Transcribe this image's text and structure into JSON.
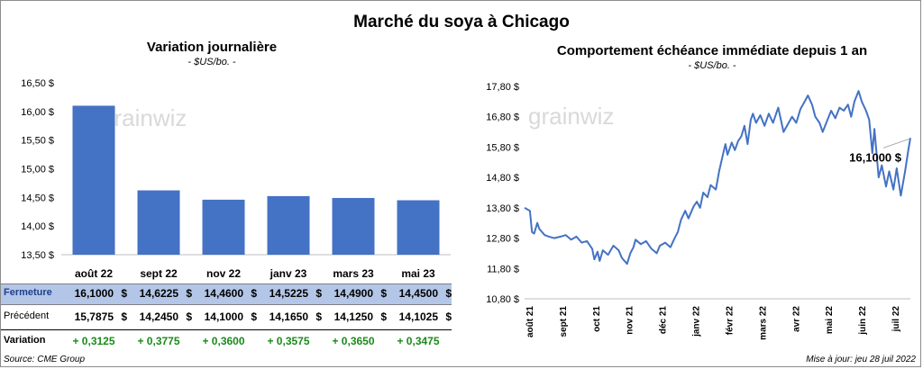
{
  "title": "Marché du soya à Chicago",
  "source": "Source: CME Group",
  "updated": "Mise à jour: jeu 28 juil 2022",
  "watermark": "grainwiz",
  "colors": {
    "bar": "#4472c4",
    "line": "#4472c4",
    "highlight_row": "#b4c6e7",
    "variation": "#1a8a1a"
  },
  "chart_data": [
    {
      "type": "bar",
      "title": "Variation journalière",
      "subtitle": "- $US/bo. -",
      "categories": [
        "août 22",
        "sept 22",
        "nov 22",
        "janv 23",
        "mars 23",
        "mai 23"
      ],
      "values": [
        16.1,
        14.6225,
        14.46,
        14.5225,
        14.49,
        14.45
      ],
      "ylim": [
        13.5,
        16.5
      ],
      "yticks": [
        "13,50 $",
        "14,00 $",
        "14,50 $",
        "15,00 $",
        "15,50 $",
        "16,00 $",
        "16,50 $"
      ],
      "grid": false
    },
    {
      "type": "line",
      "title": "Comportement échéance immédiate depuis 1 an",
      "subtitle": "- $US/bo. -",
      "ylim": [
        10.8,
        17.8
      ],
      "yticks": [
        "10,80 $",
        "11,80 $",
        "12,80 $",
        "13,80 $",
        "14,80 $",
        "15,80 $",
        "16,80 $",
        "17,80 $"
      ],
      "x_labels": [
        "août 21",
        "sept 21",
        "oct 21",
        "nov 21",
        "déc 21",
        "janv 22",
        "févr 22",
        "mars 22",
        "avr 22",
        "mai 22",
        "juin 22",
        "juil 22"
      ],
      "x_range": [
        "2021-07-28",
        "2022-07-28"
      ],
      "callout": "16,1000 $",
      "points": [
        [
          "2021-07-28",
          13.8
        ],
        [
          "2021-08-02",
          13.7
        ],
        [
          "2021-08-04",
          13.0
        ],
        [
          "2021-08-06",
          12.95
        ],
        [
          "2021-08-09",
          13.3
        ],
        [
          "2021-08-11",
          13.1
        ],
        [
          "2021-08-16",
          12.9
        ],
        [
          "2021-08-20",
          12.85
        ],
        [
          "2021-08-25",
          12.8
        ],
        [
          "2021-08-31",
          12.85
        ],
        [
          "2021-09-05",
          12.9
        ],
        [
          "2021-09-10",
          12.75
        ],
        [
          "2021-09-15",
          12.85
        ],
        [
          "2021-09-20",
          12.65
        ],
        [
          "2021-09-25",
          12.7
        ],
        [
          "2021-09-30",
          12.45
        ],
        [
          "2021-10-02",
          12.1
        ],
        [
          "2021-10-05",
          12.35
        ],
        [
          "2021-10-07",
          12.05
        ],
        [
          "2021-10-10",
          12.4
        ],
        [
          "2021-10-15",
          12.25
        ],
        [
          "2021-10-20",
          12.55
        ],
        [
          "2021-10-25",
          12.4
        ],
        [
          "2021-10-28",
          12.15
        ],
        [
          "2021-11-02",
          11.95
        ],
        [
          "2021-11-05",
          12.3
        ],
        [
          "2021-11-08",
          12.5
        ],
        [
          "2021-11-10",
          12.75
        ],
        [
          "2021-11-15",
          12.6
        ],
        [
          "2021-11-20",
          12.7
        ],
        [
          "2021-11-25",
          12.45
        ],
        [
          "2021-11-30",
          12.3
        ],
        [
          "2021-12-03",
          12.55
        ],
        [
          "2021-12-08",
          12.65
        ],
        [
          "2021-12-13",
          12.5
        ],
        [
          "2021-12-17",
          12.8
        ],
        [
          "2021-12-20",
          13.0
        ],
        [
          "2021-12-23",
          13.4
        ],
        [
          "2021-12-27",
          13.7
        ],
        [
          "2021-12-30",
          13.45
        ],
        [
          "2022-01-04",
          13.85
        ],
        [
          "2022-01-07",
          14.0
        ],
        [
          "2022-01-10",
          13.8
        ],
        [
          "2022-01-13",
          14.3
        ],
        [
          "2022-01-17",
          14.15
        ],
        [
          "2022-01-20",
          14.55
        ],
        [
          "2022-01-25",
          14.4
        ],
        [
          "2022-01-28",
          15.0
        ],
        [
          "2022-02-01",
          15.6
        ],
        [
          "2022-02-03",
          15.9
        ],
        [
          "2022-02-05",
          15.55
        ],
        [
          "2022-02-09",
          15.95
        ],
        [
          "2022-02-12",
          15.7
        ],
        [
          "2022-02-15",
          16.0
        ],
        [
          "2022-02-18",
          16.15
        ],
        [
          "2022-02-21",
          16.5
        ],
        [
          "2022-02-24",
          15.9
        ],
        [
          "2022-02-27",
          16.7
        ],
        [
          "2022-03-01",
          16.9
        ],
        [
          "2022-03-04",
          16.6
        ],
        [
          "2022-03-08",
          16.85
        ],
        [
          "2022-03-12",
          16.5
        ],
        [
          "2022-03-16",
          16.9
        ],
        [
          "2022-03-20",
          16.6
        ],
        [
          "2022-03-25",
          17.1
        ],
        [
          "2022-03-30",
          16.3
        ],
        [
          "2022-04-03",
          16.55
        ],
        [
          "2022-04-07",
          16.8
        ],
        [
          "2022-04-11",
          16.6
        ],
        [
          "2022-04-15",
          17.05
        ],
        [
          "2022-04-19",
          17.3
        ],
        [
          "2022-04-22",
          17.5
        ],
        [
          "2022-04-26",
          17.2
        ],
        [
          "2022-04-29",
          16.8
        ],
        [
          "2022-05-03",
          16.6
        ],
        [
          "2022-05-06",
          16.3
        ],
        [
          "2022-05-10",
          16.65
        ],
        [
          "2022-05-14",
          17.0
        ],
        [
          "2022-05-18",
          16.75
        ],
        [
          "2022-05-22",
          17.1
        ],
        [
          "2022-05-26",
          17.0
        ],
        [
          "2022-05-30",
          17.2
        ],
        [
          "2022-06-02",
          16.8
        ],
        [
          "2022-06-05",
          17.3
        ],
        [
          "2022-06-09",
          17.65
        ],
        [
          "2022-06-12",
          17.3
        ],
        [
          "2022-06-16",
          17.0
        ],
        [
          "2022-06-19",
          16.7
        ],
        [
          "2022-06-22",
          15.6
        ],
        [
          "2022-06-24",
          16.4
        ],
        [
          "2022-06-28",
          14.8
        ],
        [
          "2022-07-01",
          15.2
        ],
        [
          "2022-07-05",
          14.5
        ],
        [
          "2022-07-08",
          15.0
        ],
        [
          "2022-07-12",
          14.4
        ],
        [
          "2022-07-15",
          15.1
        ],
        [
          "2022-07-19",
          14.2
        ],
        [
          "2022-07-23",
          15.0
        ],
        [
          "2022-07-26",
          15.7
        ],
        [
          "2022-07-28",
          16.1
        ]
      ]
    }
  ],
  "table": {
    "rows": [
      {
        "label": "Fermeture",
        "values": [
          "16,1000",
          "14,6225",
          "14,4600",
          "14,5225",
          "14,4900",
          "14,4500"
        ]
      },
      {
        "label": "Précédent",
        "values": [
          "15,7875",
          "14,2450",
          "14,1000",
          "14,1650",
          "14,1250",
          "14,1025"
        ]
      }
    ],
    "currency": "$",
    "variation_label": "Variation",
    "variations": [
      "+ 0,3125",
      "+ 0,3775",
      "+ 0,3600",
      "+ 0,3575",
      "+ 0,3650",
      "+ 0,3475"
    ]
  }
}
